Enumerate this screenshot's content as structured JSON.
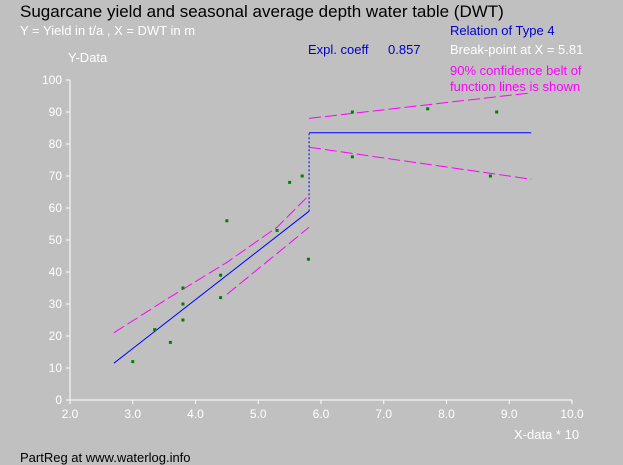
{
  "title": "Sugarcane yield and seasonal average depth water table (DWT)",
  "subtitle": "Y = Yield in t/a , X = DWT in m",
  "ylabel": "Y-Data",
  "xlabel": "X-data * 10",
  "expl_label": "Expl. coeff",
  "expl_value": "0.857",
  "relation": "Relation of Type 4",
  "breakpoint": "Break-point at X =  5.81",
  "confidence_line1": "90% confidence belt of",
  "confidence_line2": "function lines is shown",
  "footer": "PartReg at www.waterlog.info",
  "colors": {
    "background": "#c0c0c0",
    "points": "#008000",
    "regression": "#0000ff",
    "confidence": "#ff00ff",
    "axes": "#ffffff"
  },
  "chart_data": {
    "type": "scatter",
    "xlim": [
      2.0,
      10.0
    ],
    "ylim": [
      0,
      100
    ],
    "x_ticks": [
      "2.0",
      "3.0",
      "4.0",
      "5.0",
      "6.0",
      "7.0",
      "8.0",
      "9.0",
      "10.0"
    ],
    "y_ticks": [
      "0",
      "10",
      "20",
      "30",
      "40",
      "50",
      "60",
      "70",
      "80",
      "90",
      "100"
    ],
    "points": [
      {
        "x": 3.0,
        "y": 12
      },
      {
        "x": 3.35,
        "y": 22
      },
      {
        "x": 3.6,
        "y": 18
      },
      {
        "x": 3.8,
        "y": 35
      },
      {
        "x": 3.8,
        "y": 30
      },
      {
        "x": 3.8,
        "y": 25
      },
      {
        "x": 4.4,
        "y": 39
      },
      {
        "x": 4.4,
        "y": 32
      },
      {
        "x": 4.5,
        "y": 56
      },
      {
        "x": 5.3,
        "y": 53
      },
      {
        "x": 5.5,
        "y": 68
      },
      {
        "x": 5.7,
        "y": 70
      },
      {
        "x": 5.8,
        "y": 44
      },
      {
        "x": 6.5,
        "y": 76
      },
      {
        "x": 6.5,
        "y": 90
      },
      {
        "x": 7.7,
        "y": 91
      },
      {
        "x": 8.7,
        "y": 70
      },
      {
        "x": 8.8,
        "y": 90
      }
    ],
    "regression": {
      "segment1": [
        [
          2.7,
          11.5
        ],
        [
          5.81,
          59
        ]
      ],
      "breakpoint_x": 5.81,
      "segment2": [
        [
          5.81,
          83.5
        ],
        [
          9.35,
          83.5
        ]
      ]
    },
    "confidence": {
      "seg1_upper": [
        [
          2.7,
          21
        ],
        [
          3.5,
          31
        ],
        [
          4.5,
          43
        ],
        [
          5.3,
          54
        ],
        [
          5.81,
          64
        ]
      ],
      "seg1_lower": [
        [
          4.5,
          33
        ],
        [
          5.0,
          41
        ],
        [
          5.5,
          49
        ],
        [
          5.81,
          54
        ]
      ],
      "seg2_upper": [
        [
          5.81,
          88
        ],
        [
          9.35,
          96
        ]
      ],
      "seg2_lower": [
        [
          5.81,
          79
        ],
        [
          9.35,
          69
        ]
      ]
    },
    "grid": false
  }
}
